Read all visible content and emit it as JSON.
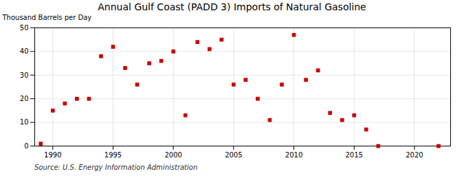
{
  "chart_data": {
    "type": "scatter",
    "title": "Annual Gulf Coast (PADD 3) Imports of Natural Gasoline",
    "ylabel": "Thousand Barrels per Day",
    "source": "Source: U.S. Energy Information Administration",
    "x": [
      1989,
      1990,
      1991,
      1992,
      1993,
      1994,
      1995,
      1996,
      1997,
      1998,
      1999,
      2000,
      2001,
      2002,
      2003,
      2004,
      2005,
      2006,
      2007,
      2008,
      2009,
      2010,
      2011,
      2012,
      2013,
      2014,
      2015,
      2016,
      2017,
      2022
    ],
    "values": [
      1,
      15,
      18,
      20,
      20,
      38,
      42,
      33,
      26,
      35,
      36,
      40,
      13,
      44,
      41,
      45,
      26,
      28,
      20,
      11,
      26,
      47,
      28,
      32,
      14,
      11,
      13,
      7,
      0,
      0
    ],
    "color": "#cc0000",
    "marker": "square",
    "xlim": [
      1988.5,
      2023
    ],
    "ylim": [
      0,
      50
    ],
    "xticks": [
      1990,
      1995,
      2000,
      2005,
      2010,
      2015,
      2020
    ],
    "yticks": [
      0,
      10,
      20,
      30,
      40,
      50
    ],
    "grid": true
  }
}
